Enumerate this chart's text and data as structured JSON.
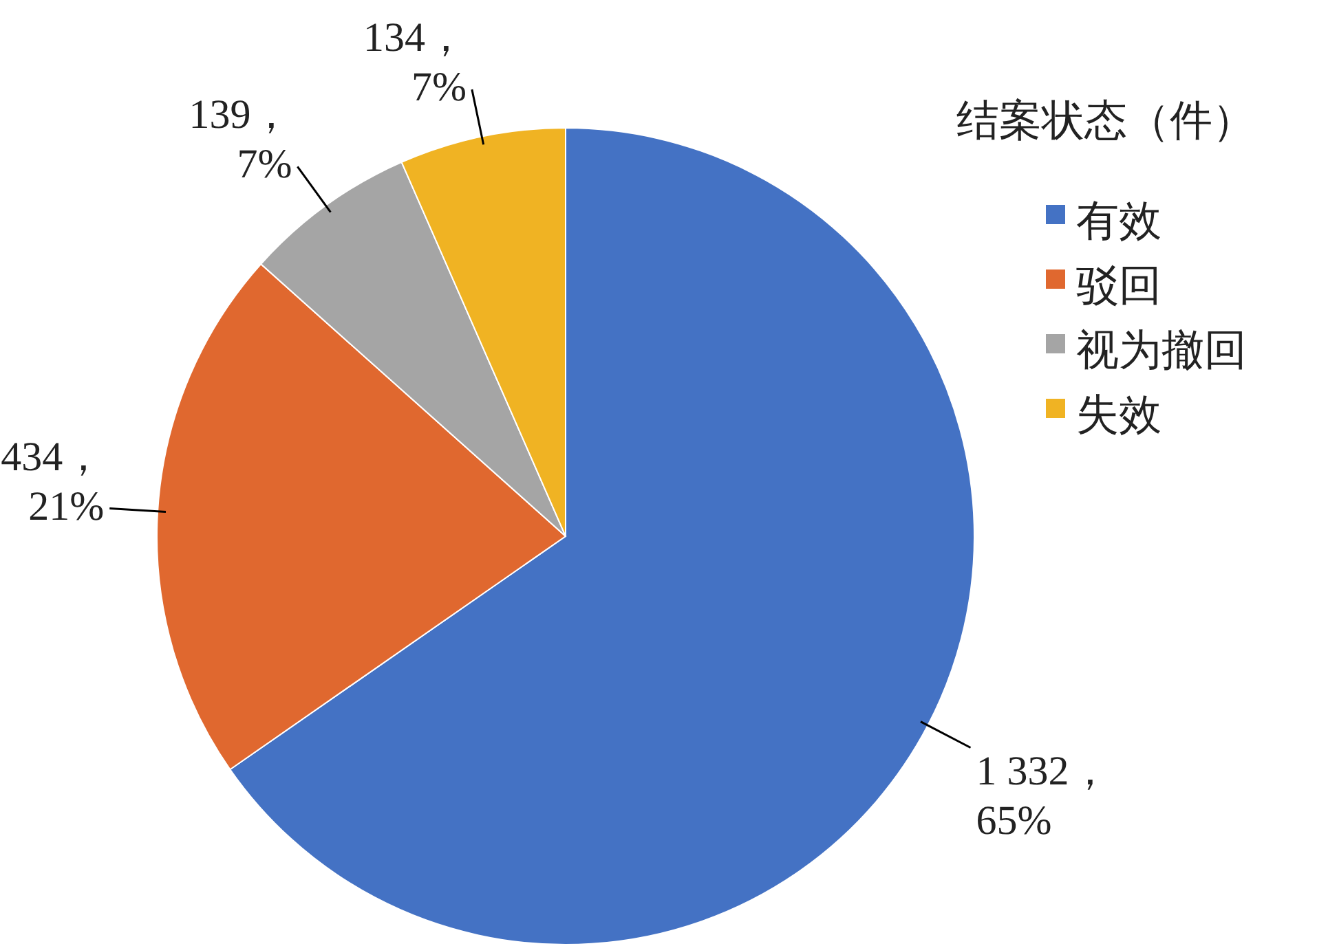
{
  "chart_data": {
    "type": "pie",
    "legend_title": "结案状态（件）",
    "legend": "top right",
    "categories": [
      "有效",
      "驳回",
      "视为撤回",
      "失效"
    ],
    "values": [
      1332,
      434,
      139,
      134
    ],
    "colors": [
      "#4472c4",
      "#e0682f",
      "#a5a5a5",
      "#f0b323"
    ],
    "value_labels": [
      "1 332，65%",
      "434，21%",
      "139，7%",
      "134，7%"
    ]
  }
}
